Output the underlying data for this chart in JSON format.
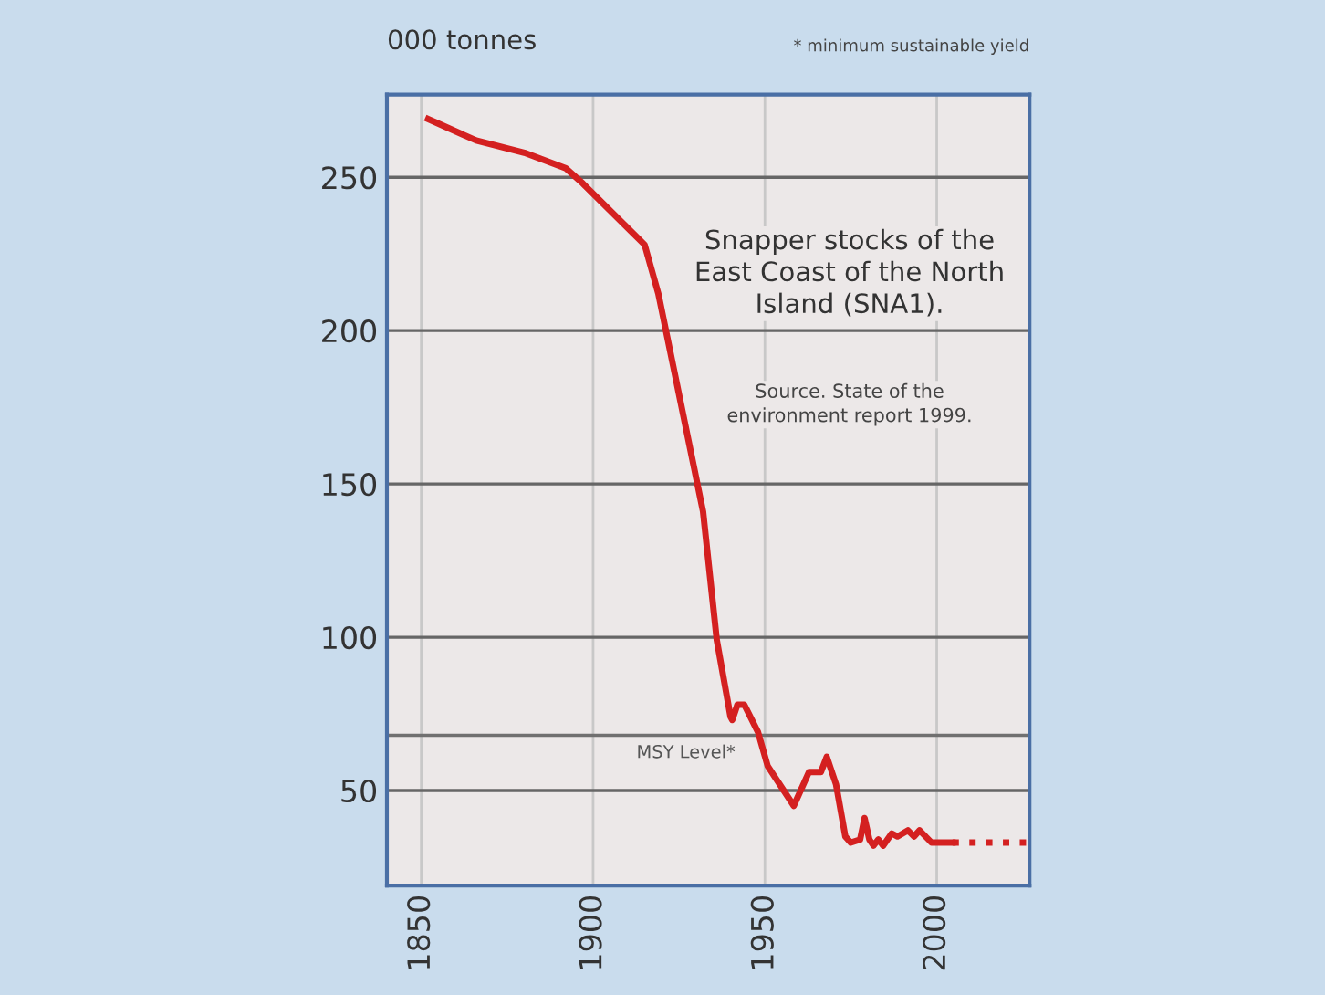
{
  "chart_data": {
    "type": "line",
    "title": "Snapper stocks of the East Coast of the North Island (SNA1).",
    "subtitle": "Source. State of the environment report 1999.",
    "ylabel": "000 tonnes",
    "annotations": [
      "* minimum sustainable yield"
    ],
    "series": [
      {
        "color": "#d42020",
        "line_style": "solid",
        "x": [
          1852,
          1854,
          1866,
          1880,
          1892,
          1897,
          1915,
          1919,
          1932,
          1936,
          1940,
          1940.5,
          1942,
          1944,
          1948,
          1950.8,
          1958.4,
          1962.8,
          1966.3,
          1968,
          1970.7,
          1973.4,
          1975,
          1977.7,
          1979,
          1980.4,
          1981.6,
          1983,
          1984.4,
          1986.9,
          1988.6,
          1991.6,
          1993.4,
          1995,
          1998.5,
          2004.6
        ],
        "values": [
          269,
          268,
          262,
          258,
          253,
          248,
          228,
          212,
          141,
          99,
          74,
          73,
          78,
          78,
          69,
          58,
          45,
          56,
          56,
          61,
          52,
          35,
          33,
          34,
          41,
          34,
          32,
          34,
          32,
          36,
          35,
          37,
          35,
          37,
          33,
          33
        ]
      },
      {
        "color": "#d42020",
        "line_style": "dotted",
        "x": [
          2004.6,
          2026.7
        ],
        "values": [
          33,
          33
        ]
      }
    ],
    "ref_lines": [
      {
        "axis": "y",
        "value": 68,
        "label": "MSY Level*",
        "color": "#707070"
      }
    ],
    "xlim": [
      1840,
      2027
    ],
    "xticks": [
      1850,
      1900,
      1950,
      2000
    ],
    "ylim": [
      19,
      277
    ],
    "yticks": [
      50,
      100,
      150,
      200,
      250
    ],
    "grid": true,
    "legend": false
  }
}
